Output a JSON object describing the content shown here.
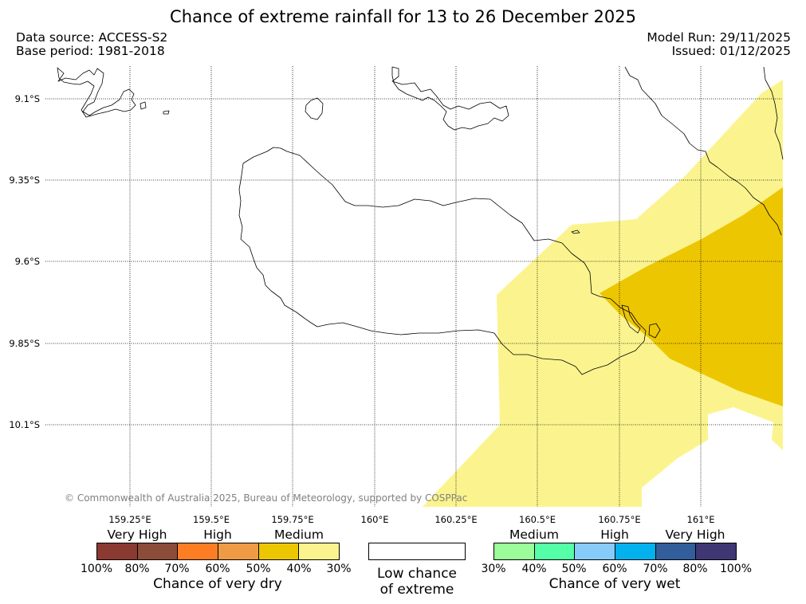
{
  "title": "Chance of extreme rainfall for 13 to 26 December 2025",
  "data_source": "Data source: ACCESS-S2",
  "base_period": "Base period: 1981-2018",
  "model_run": "Model Run: 29/11/2025",
  "issued": "Issued: 01/12/2025",
  "copyright": "© Commonwealth of Australia 2025, Bureau of Meteorology, supported by COSPPac",
  "map": {
    "longitude_labels": [
      "159.25°E",
      "159.5°E",
      "159.75°E",
      "160°E",
      "160.25°E",
      "160.5°E",
      "160.75°E",
      "161°E"
    ],
    "latitude_labels": [
      "9.1°S",
      "9.35°S",
      "9.6°S",
      "9.85°S",
      "10.1°S"
    ],
    "shaded_areas": [
      {
        "category": "Medium",
        "range": "30%-40%",
        "color": "#fbf48e"
      },
      {
        "category": "Medium",
        "range": "40%-50%",
        "color": "#edc602"
      }
    ]
  },
  "legend": {
    "dry": {
      "categories": [
        "Very High",
        "High",
        "Medium"
      ],
      "colors": [
        "#8b3a31",
        "#8b4d3a",
        "#fd7e22",
        "#ef9b45",
        "#edc602",
        "#fbf48e"
      ],
      "ticks": [
        "100%",
        "80%",
        "70%",
        "60%",
        "50%",
        "40%",
        "30%"
      ],
      "title": "Chance of very dry"
    },
    "low": {
      "line1": "Low chance",
      "line2": "of extreme",
      "color": "#ffffff"
    },
    "wet": {
      "categories": [
        "Medium",
        "High",
        "Very High"
      ],
      "colors": [
        "#9afd9a",
        "#54ffa7",
        "#87cbfa",
        "#02b1ee",
        "#325f9b",
        "#3f3774"
      ],
      "ticks": [
        "30%",
        "40%",
        "50%",
        "60%",
        "70%",
        "80%",
        "100%"
      ],
      "title": "Chance of very wet"
    }
  }
}
